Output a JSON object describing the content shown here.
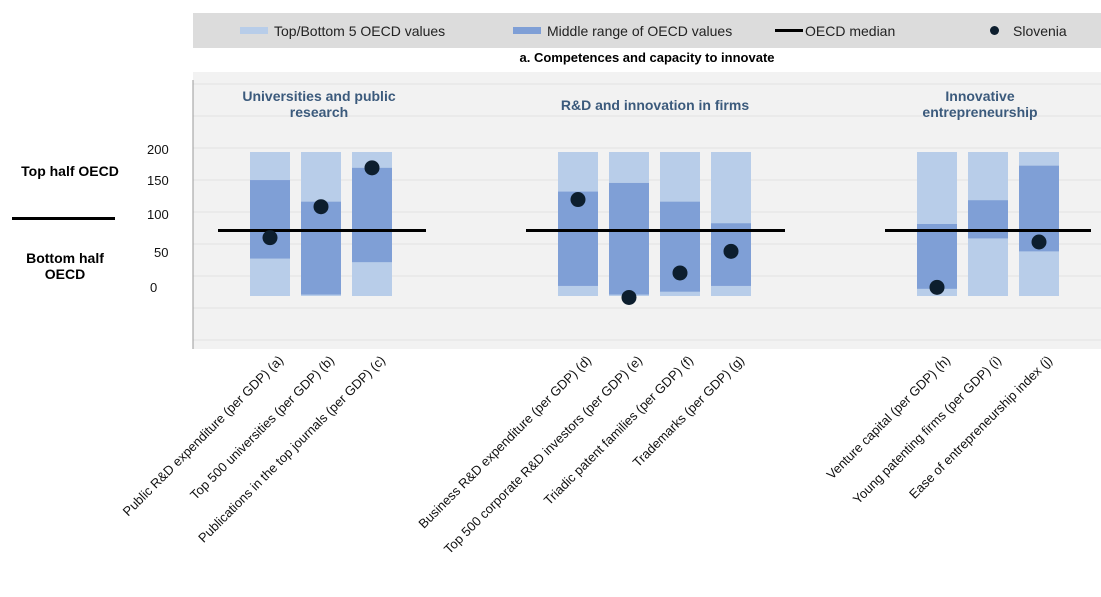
{
  "legend": {
    "top_bottom": "Top/Bottom 5 OECD values",
    "middle": "Middle range of OECD values",
    "median": "OECD median",
    "country": "Slovenia"
  },
  "subtitle": "a. Competences and capacity to innovate",
  "side_labels": {
    "top": "Top half OECD",
    "bottom": "Bottom half OECD"
  },
  "colors": {
    "outer_band": "#b8cde9",
    "middle_band": "#7f9fd6",
    "median_line": "#000000",
    "dot": "#0d1e2e",
    "group_title": "#3b5a7c",
    "legend_bg": "#dcdcdc",
    "plot_bg": "#f2f2f2"
  },
  "chart_data": {
    "type": "bar",
    "title": "a. Competences and capacity to innovate",
    "yticks": [
      "200",
      "150",
      "100",
      "50",
      "0"
    ],
    "ylim": [
      -80,
      230
    ],
    "median": 91,
    "groups": [
      {
        "title": "Universities and public research",
        "indicators": [
          {
            "label": "Public R&D expenditure (per GDP) (a)",
            "outer": [
              0,
              200
            ],
            "middle": [
              52,
              161
            ],
            "value": 81
          },
          {
            "label": "Top 500 universities (per GDP) (b)",
            "outer": [
              0,
              200
            ],
            "middle": [
              2,
              131
            ],
            "value": 124
          },
          {
            "label": "Publications in the top journals (per GDP) (c)",
            "outer": [
              0,
              200
            ],
            "middle": [
              47,
              178
            ],
            "value": 178
          }
        ]
      },
      {
        "title": "R&D and innovation in firms",
        "indicators": [
          {
            "label": "Business R&D expenditure (per GDP) (d)",
            "outer": [
              0,
              200
            ],
            "middle": [
              14,
              145
            ],
            "value": 134
          },
          {
            "label": "Top 500 corporate R&D investors (per GDP) (e)",
            "outer": [
              0,
              200
            ],
            "middle": [
              2,
              157
            ],
            "value": -2
          },
          {
            "label": "Triadic patent families (per GDP) (f)",
            "outer": [
              0,
              200
            ],
            "middle": [
              6,
              131
            ],
            "value": 32
          },
          {
            "label": "Trademarks (per GDP) (g)",
            "outer": [
              0,
              200
            ],
            "middle": [
              14,
              101
            ],
            "value": 62
          }
        ]
      },
      {
        "title": "Innovative entrepreneurship",
        "indicators": [
          {
            "label": "Venture capital (per GDP) (h)",
            "outer": [
              0,
              200
            ],
            "middle": [
              10,
              100
            ],
            "value": 12
          },
          {
            "label": "Young patenting firms (per GDP) (i)",
            "outer": [
              0,
              200
            ],
            "middle": [
              80,
              133
            ],
            "value": null
          },
          {
            "label": "Ease of entrepreneurship index (j)",
            "outer": [
              0,
              200
            ],
            "middle": [
              62,
              181
            ],
            "value": 75
          }
        ]
      }
    ]
  }
}
